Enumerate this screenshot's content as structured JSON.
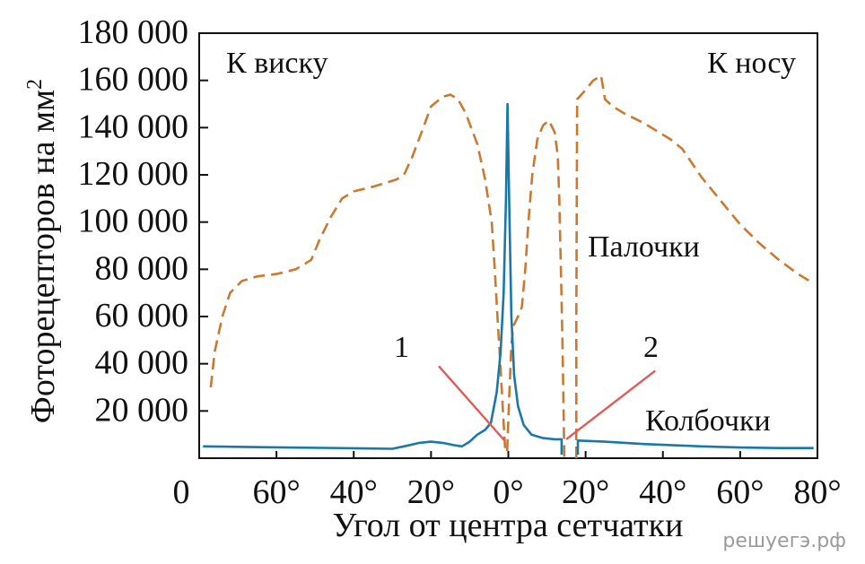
{
  "chart_data": {
    "type": "line",
    "ylabel": "Фоторецепторов на мм",
    "ylabel_superscript": "2",
    "xlabel": "Угол от центра сетчатки",
    "y_ticks": [
      "180 000",
      "160 000",
      "140 000",
      "120 000",
      "100 000",
      "80 000",
      "60 000",
      "40 000",
      "20 000"
    ],
    "y_tick_values": [
      180000,
      160000,
      140000,
      120000,
      100000,
      80000,
      60000,
      40000,
      20000
    ],
    "x_ticks": [
      "0",
      "60°",
      "40°",
      "20°",
      "0°",
      "20°",
      "40°",
      "60°",
      "80°"
    ],
    "x_tick_values": [
      -80,
      -60,
      -40,
      -20,
      0,
      20,
      40,
      60,
      80
    ],
    "ylim": [
      0,
      180000
    ],
    "xlim": [
      -80,
      80
    ],
    "grid": false,
    "annotations": {
      "temple": "К виску",
      "nose": "К носу",
      "rods": "Палочки",
      "cones": "Колбочки",
      "marker1": "1",
      "marker2": "2"
    },
    "series": [
      {
        "name": "Палочки",
        "style": "dashed",
        "color": "#c97a30",
        "segments": [
          [
            [
              -77,
              30000
            ],
            [
              -76,
              45000
            ],
            [
              -74,
              60000
            ],
            [
              -72,
              70000
            ],
            [
              -69,
              75000
            ],
            [
              -65,
              77000
            ],
            [
              -60,
              78000
            ],
            [
              -55,
              80000
            ],
            [
              -51,
              84000
            ],
            [
              -49,
              92000
            ],
            [
              -46,
              102000
            ],
            [
              -43,
              110000
            ],
            [
              -40,
              113000
            ],
            [
              -35,
              115000
            ],
            [
              -29,
              118000
            ],
            [
              -27,
              120000
            ],
            [
              -25,
              127000
            ],
            [
              -22,
              140000
            ],
            [
              -20,
              149000
            ],
            [
              -17,
              153000
            ],
            [
              -15,
              154000
            ],
            [
              -13,
              152000
            ],
            [
              -11,
              146000
            ],
            [
              -8,
              133000
            ],
            [
              -6,
              118000
            ],
            [
              -4.3,
              100000
            ],
            [
              -3.5,
              80000
            ],
            [
              -2.8,
              60000
            ],
            [
              -2,
              38000
            ],
            [
              -1.4,
              20000
            ],
            [
              -0.8,
              3000
            ]
          ],
          [
            [
              -0.3,
              3000
            ],
            [
              0.2,
              25000
            ],
            [
              0.8,
              48000
            ],
            [
              1.3,
              56000
            ],
            [
              2.5,
              60000
            ],
            [
              3.5,
              64000
            ],
            [
              4.4,
              80000
            ],
            [
              5.2,
              100000
            ],
            [
              6.2,
              120000
            ],
            [
              7.5,
              135000
            ],
            [
              9,
              141000
            ],
            [
              10.5,
              143000
            ],
            [
              12,
              138000
            ],
            [
              12.8,
              128000
            ],
            [
              13.2,
              110000
            ],
            [
              13.6,
              80000
            ],
            [
              14,
              50000
            ],
            [
              14.3,
              20000
            ],
            [
              14.5,
              0
            ]
          ],
          [
            [
              17.6,
              0
            ],
            [
              17.6,
              60000
            ],
            [
              17.7,
              100000
            ],
            [
              17.8,
              152000
            ],
            [
              20,
              156000
            ],
            [
              22,
              160000
            ],
            [
              24,
              162000
            ],
            [
              25,
              152000
            ],
            [
              27,
              149000
            ],
            [
              30,
              146000
            ],
            [
              35,
              142000
            ],
            [
              40,
              137000
            ],
            [
              42,
              135000
            ],
            [
              45,
              131000
            ],
            [
              50,
              119000
            ],
            [
              55,
              109000
            ],
            [
              60,
              99000
            ],
            [
              65,
              91000
            ],
            [
              70,
              84000
            ],
            [
              75,
              78000
            ],
            [
              78,
              75000
            ]
          ]
        ]
      },
      {
        "name": "Колбочки",
        "style": "solid",
        "color": "#1a78a8",
        "segments": [
          [
            [
              -79,
              5000
            ],
            [
              -60,
              4600
            ],
            [
              -40,
              4200
            ],
            [
              -30,
              4000
            ],
            [
              -27,
              5000
            ],
            [
              -23,
              6500
            ],
            [
              -20,
              7000
            ],
            [
              -17,
              6500
            ],
            [
              -14,
              5500
            ],
            [
              -12,
              5000
            ],
            [
              -10,
              7000
            ],
            [
              -8,
              10000
            ],
            [
              -6,
              12000
            ],
            [
              -4.5,
              15000
            ],
            [
              -3,
              28000
            ],
            [
              -2,
              45000
            ],
            [
              -1.2,
              70000
            ],
            [
              -0.6,
              110000
            ],
            [
              -0.2,
              150000
            ],
            [
              0.2,
              110000
            ],
            [
              0.8,
              60000
            ],
            [
              1.5,
              35000
            ],
            [
              2.5,
              22000
            ],
            [
              4,
              14000
            ],
            [
              6,
              10000
            ],
            [
              9,
              8500
            ],
            [
              12,
              8000
            ],
            [
              13.8,
              8000
            ],
            [
              13.8,
              1500
            ]
          ],
          [
            [
              18,
              1500
            ],
            [
              18,
              7500
            ],
            [
              25,
              7000
            ],
            [
              35,
              6000
            ],
            [
              50,
              5000
            ],
            [
              60,
              4500
            ],
            [
              70,
              4300
            ],
            [
              79,
              4300
            ]
          ]
        ]
      }
    ],
    "pointer_lines": [
      {
        "label": "1",
        "from": [
          -18,
          39000
        ],
        "to": [
          -1,
          7500
        ]
      },
      {
        "label": "2",
        "from": [
          38,
          37000
        ],
        "to": [
          15,
          8000
        ]
      }
    ],
    "watermark": "решуегэ.рф"
  }
}
